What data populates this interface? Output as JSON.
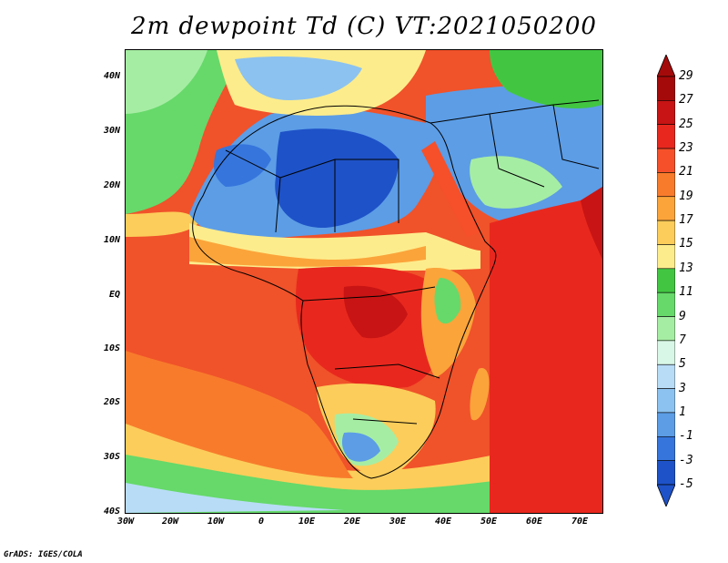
{
  "title": "2m dewpoint Td (C) VT:2021050200",
  "credit": "GrADS: IGES/COLA",
  "lat_labels": [
    "40N",
    "30N",
    "20N",
    "10N",
    "EQ",
    "10S",
    "20S",
    "30S",
    "40S"
  ],
  "lon_labels": [
    "30W",
    "20W",
    "10W",
    "0",
    "10E",
    "20E",
    "30E",
    "40E",
    "50E",
    "60E",
    "70E"
  ],
  "colorbar": {
    "labels": [
      "29",
      "27",
      "25",
      "23",
      "21",
      "19",
      "17",
      "15",
      "13",
      "11",
      "9",
      "7",
      "5",
      "3",
      "1",
      "-1",
      "-3",
      "-5"
    ],
    "colors": [
      "#a50a0a",
      "#c81414",
      "#e8281e",
      "#f5502a",
      "#f87b2c",
      "#fba43a",
      "#fccd5a",
      "#fdec8c",
      "#42c642",
      "#66d96a",
      "#a6eda4",
      "#d8f7e6",
      "#b8dcf6",
      "#8cc2ef",
      "#5c9de6",
      "#3675dc",
      "#1e52c8"
    ],
    "bounds": [
      -5,
      -3,
      -1,
      1,
      3,
      5,
      7,
      9,
      11,
      13,
      15,
      17,
      19,
      21,
      23,
      25,
      27,
      29
    ]
  },
  "map": {
    "extent_lon": [
      -30,
      75
    ],
    "extent_lat": [
      -40,
      45
    ],
    "variable": "2m dewpoint",
    "units": "C"
  }
}
